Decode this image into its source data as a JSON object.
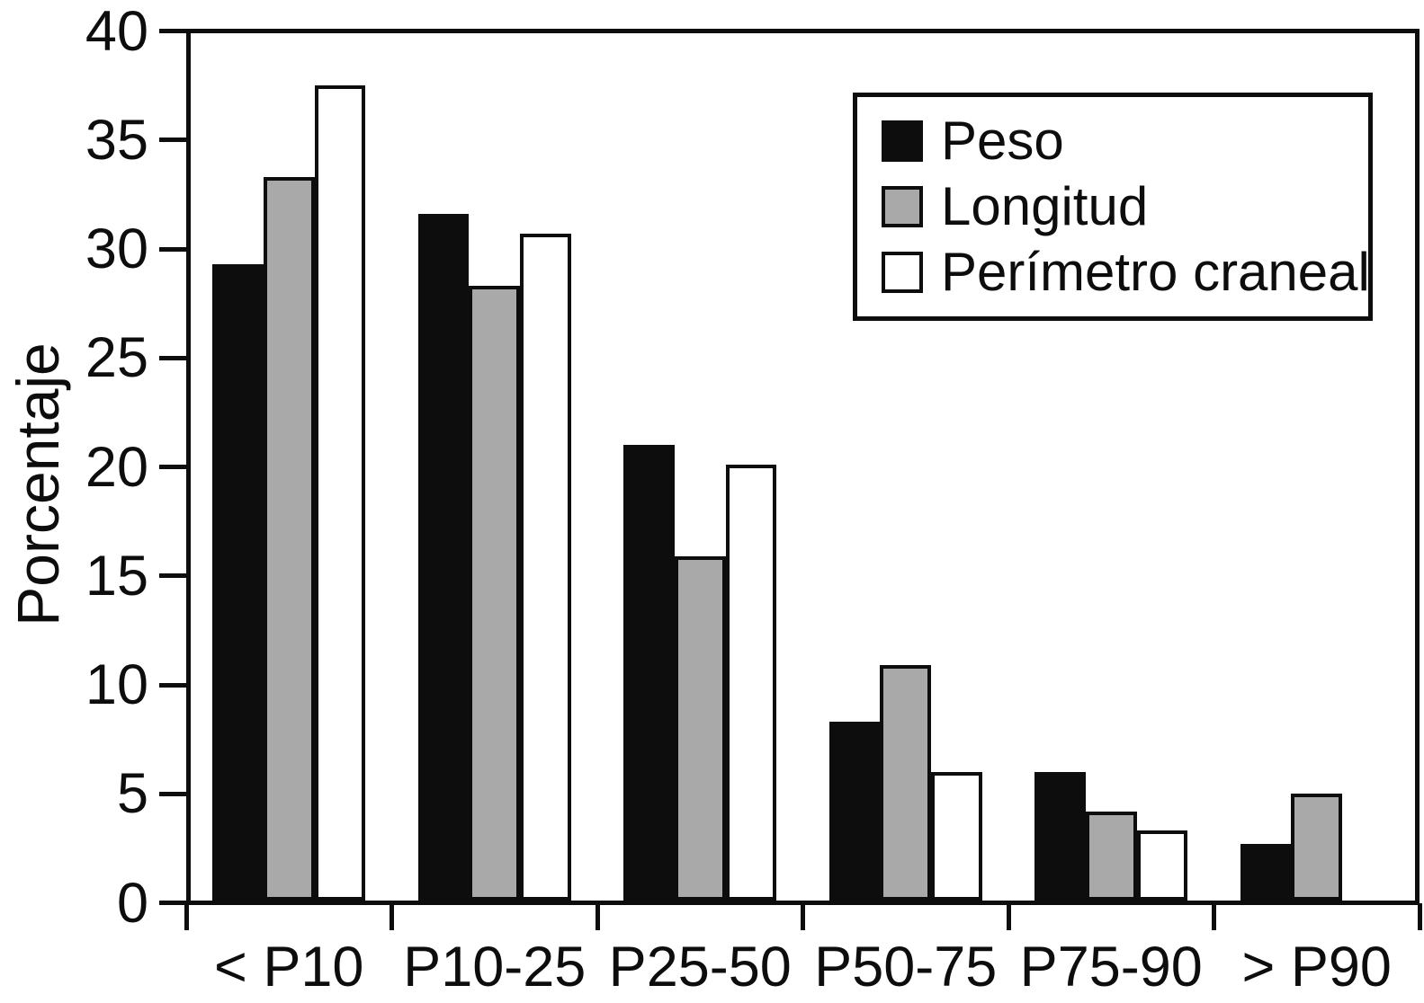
{
  "chart_data": {
    "type": "bar",
    "title": "",
    "xlabel": "",
    "ylabel": "Porcentaje",
    "ylim": [
      0,
      40
    ],
    "yticks": [
      0,
      5,
      10,
      15,
      20,
      25,
      30,
      35,
      40
    ],
    "grid": false,
    "legend_position": "top-right",
    "categories": [
      "< P10",
      "P10-25",
      "P25-50",
      "P50-75",
      "P75-90",
      "> P90"
    ],
    "series": [
      {
        "name": "Peso",
        "color": "#0d0d0d",
        "values": [
          29.2,
          31.5,
          20.9,
          8.2,
          5.9,
          2.6
        ]
      },
      {
        "name": "Longitud",
        "color": "#a9a9a9",
        "values": [
          33.2,
          28.2,
          15.8,
          10.8,
          4.1,
          4.9
        ]
      },
      {
        "name": "Perímetro craneal",
        "color": "#ffffff",
        "values": [
          37.4,
          30.6,
          20.0,
          5.9,
          3.2,
          0
        ]
      }
    ],
    "colors": {
      "line": "#0d0d0d",
      "background": "#ffffff"
    }
  }
}
